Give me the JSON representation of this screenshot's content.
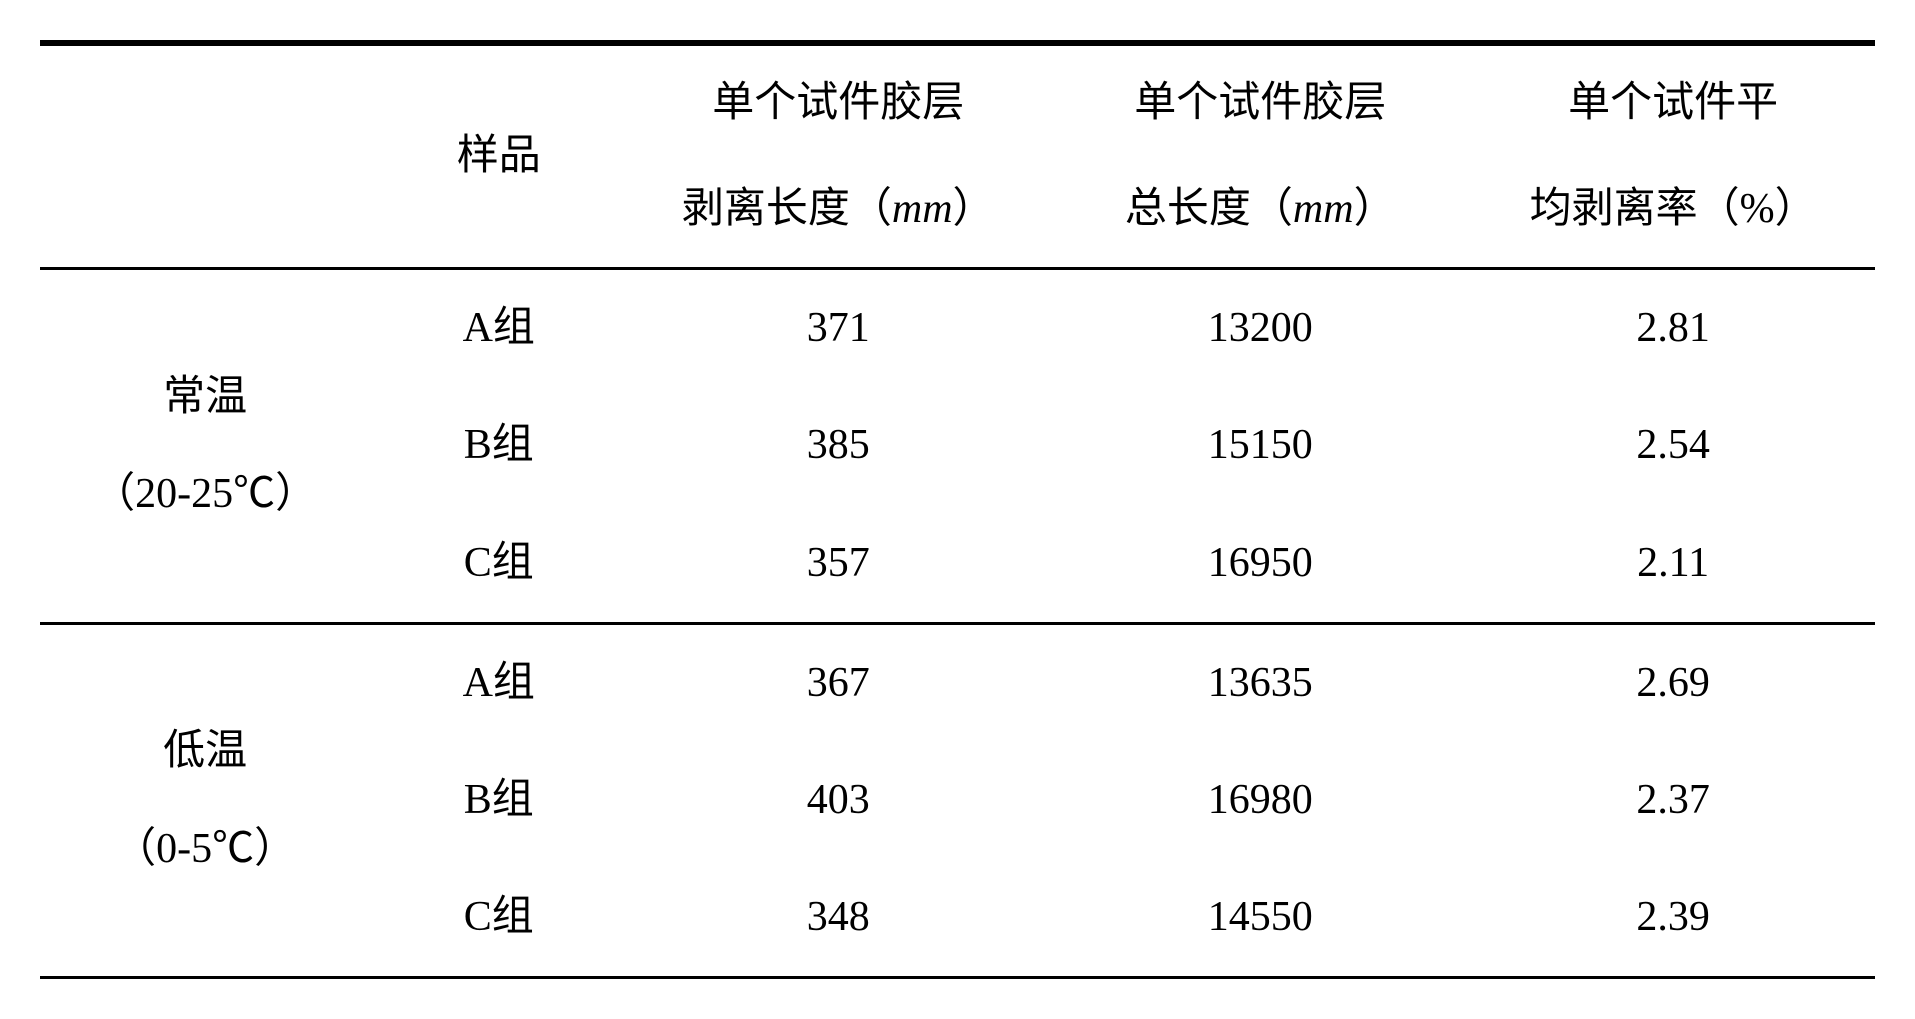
{
  "table": {
    "headers": {
      "condition": "",
      "sample": "样品",
      "peel_length_line1": "单个试件胶层",
      "peel_length_line2_prefix": "剥离长度（",
      "peel_length_line2_unit": "mm",
      "peel_length_line2_suffix": "）",
      "total_length_line1": "单个试件胶层",
      "total_length_line2_prefix": "总长度（",
      "total_length_line2_unit": "mm",
      "total_length_line2_suffix": "）",
      "rate_line1": "单个试件平",
      "rate_line2": "均剥离率（%）"
    },
    "groups": [
      {
        "condition_line1": "常温",
        "condition_line2": "（20-25℃）",
        "rows": [
          {
            "sample": "A组",
            "peel_length": "371",
            "total_length": "13200",
            "rate": "2.81"
          },
          {
            "sample": "B组",
            "peel_length": "385",
            "total_length": "15150",
            "rate": "2.54"
          },
          {
            "sample": "C组",
            "peel_length": "357",
            "total_length": "16950",
            "rate": "2.11"
          }
        ]
      },
      {
        "condition_line1": "低温",
        "condition_line2": "（0-5℃）",
        "rows": [
          {
            "sample": "A组",
            "peel_length": "367",
            "total_length": "13635",
            "rate": "2.69"
          },
          {
            "sample": "B组",
            "peel_length": "403",
            "total_length": "16980",
            "rate": "2.37"
          },
          {
            "sample": "C组",
            "peel_length": "348",
            "total_length": "14550",
            "rate": "2.39"
          }
        ]
      }
    ]
  }
}
